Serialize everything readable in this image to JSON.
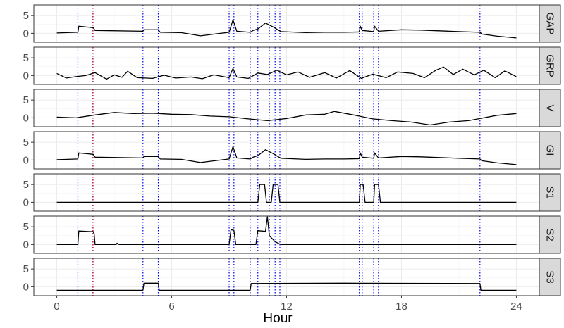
{
  "chart_data": {
    "type": "line",
    "xlabel": "Hour",
    "xlim": [
      -1.2,
      25.2
    ],
    "x_ticks": [
      0,
      6,
      12,
      18,
      24
    ],
    "x_tick_labels": [
      "0",
      "6",
      "12",
      "18",
      "24"
    ],
    "ylim": [
      -2.5,
      8
    ],
    "y_ticks": [
      0,
      5
    ],
    "y_tick_labels": [
      "0",
      "5"
    ],
    "event_lines": {
      "blue_hours": [
        1.1,
        1.85,
        4.5,
        5.3,
        9.0,
        9.25,
        10.1,
        10.5,
        11.1,
        11.4,
        11.65,
        15.8,
        15.95,
        16.55,
        16.8,
        22.1
      ],
      "red_hours": [
        1.9
      ],
      "blue_color": "#0000ee",
      "red_color": "#ff3333"
    },
    "line_color": "#000000",
    "panels": [
      {
        "name": "GAP",
        "points": [
          [
            0,
            0.1
          ],
          [
            1.1,
            0.3
          ],
          [
            1.15,
            2.0
          ],
          [
            1.9,
            1.6
          ],
          [
            2.0,
            0.8
          ],
          [
            4.5,
            0.6
          ],
          [
            4.55,
            1.0
          ],
          [
            5.3,
            1.0
          ],
          [
            5.4,
            0.3
          ],
          [
            6.5,
            0.2
          ],
          [
            7.5,
            -0.7
          ],
          [
            9.0,
            0.3
          ],
          [
            9.2,
            3.8
          ],
          [
            9.4,
            0.6
          ],
          [
            10.1,
            0.3
          ],
          [
            10.25,
            0.8
          ],
          [
            10.5,
            1.2
          ],
          [
            10.9,
            2.9
          ],
          [
            11.3,
            1.8
          ],
          [
            11.7,
            0.5
          ],
          [
            13,
            0.2
          ],
          [
            14,
            0.3
          ],
          [
            15.0,
            0.3
          ],
          [
            15.8,
            0.4
          ],
          [
            15.85,
            2.0
          ],
          [
            15.95,
            0.8
          ],
          [
            16.55,
            0.5
          ],
          [
            16.6,
            2.0
          ],
          [
            16.8,
            0.6
          ],
          [
            18,
            1.0
          ],
          [
            19,
            0.9
          ],
          [
            21,
            0.5
          ],
          [
            22.1,
            0.3
          ],
          [
            22.2,
            -0.2
          ],
          [
            23,
            -0.8
          ],
          [
            24,
            -1.3
          ]
        ]
      },
      {
        "name": "GRP",
        "points": [
          [
            0,
            0.6
          ],
          [
            0.5,
            -0.7
          ],
          [
            1.0,
            -0.3
          ],
          [
            1.5,
            0.0
          ],
          [
            2.0,
            0.8
          ],
          [
            2.6,
            -1.0
          ],
          [
            3.0,
            0.2
          ],
          [
            3.4,
            -0.5
          ],
          [
            3.7,
            1.2
          ],
          [
            4.2,
            -0.6
          ],
          [
            5.0,
            -0.8
          ],
          [
            5.6,
            0.1
          ],
          [
            6.2,
            -0.7
          ],
          [
            7.0,
            -0.4
          ],
          [
            7.6,
            -0.9
          ],
          [
            8.2,
            0.2
          ],
          [
            9.0,
            -0.6
          ],
          [
            9.2,
            2.0
          ],
          [
            9.4,
            -0.4
          ],
          [
            10.0,
            -0.8
          ],
          [
            10.5,
            0.7
          ],
          [
            11.0,
            0.3
          ],
          [
            11.5,
            1.5
          ],
          [
            12.0,
            0.2
          ],
          [
            12.6,
            1.0
          ],
          [
            13.2,
            -0.5
          ],
          [
            14.0,
            0.8
          ],
          [
            14.6,
            -0.7
          ],
          [
            15.3,
            1.4
          ],
          [
            15.9,
            -0.8
          ],
          [
            16.5,
            0.4
          ],
          [
            17.2,
            -0.6
          ],
          [
            17.8,
            1.0
          ],
          [
            18.6,
            0.6
          ],
          [
            19.2,
            -0.6
          ],
          [
            19.8,
            1.5
          ],
          [
            20.2,
            2.4
          ],
          [
            20.7,
            0.3
          ],
          [
            21.2,
            1.8
          ],
          [
            21.8,
            0.2
          ],
          [
            22.3,
            1.5
          ],
          [
            22.9,
            -0.6
          ],
          [
            23.4,
            1.3
          ],
          [
            24,
            -0.3
          ]
        ]
      },
      {
        "name": "V",
        "points": [
          [
            0,
            0.2
          ],
          [
            1.0,
            0.0
          ],
          [
            2.0,
            0.8
          ],
          [
            3.0,
            1.5
          ],
          [
            4.0,
            1.2
          ],
          [
            5.0,
            1.3
          ],
          [
            6.0,
            1.0
          ],
          [
            7.0,
            0.9
          ],
          [
            8.0,
            0.5
          ],
          [
            9.0,
            0.3
          ],
          [
            10.0,
            -0.3
          ],
          [
            11.0,
            -0.8
          ],
          [
            12.0,
            -0.2
          ],
          [
            13.0,
            0.8
          ],
          [
            14.0,
            1.0
          ],
          [
            14.5,
            1.8
          ],
          [
            15.5,
            0.8
          ],
          [
            16.5,
            -0.3
          ],
          [
            17.5,
            -0.8
          ],
          [
            18.5,
            -1.2
          ],
          [
            19.5,
            -2.0
          ],
          [
            20.5,
            -1.2
          ],
          [
            21.5,
            -0.8
          ],
          [
            22.0,
            -0.3
          ],
          [
            23.0,
            0.7
          ],
          [
            24,
            1.2
          ]
        ]
      },
      {
        "name": "GI",
        "points": [
          [
            0,
            0.1
          ],
          [
            1.1,
            0.3
          ],
          [
            1.15,
            2.0
          ],
          [
            1.9,
            1.6
          ],
          [
            2.0,
            0.8
          ],
          [
            4.5,
            0.6
          ],
          [
            4.55,
            1.0
          ],
          [
            5.3,
            1.0
          ],
          [
            5.4,
            0.3
          ],
          [
            6.5,
            0.2
          ],
          [
            7.5,
            -0.7
          ],
          [
            9.0,
            0.3
          ],
          [
            9.2,
            3.8
          ],
          [
            9.4,
            0.6
          ],
          [
            10.1,
            0.3
          ],
          [
            10.25,
            0.8
          ],
          [
            10.5,
            1.2
          ],
          [
            10.9,
            2.9
          ],
          [
            11.3,
            1.8
          ],
          [
            11.7,
            0.5
          ],
          [
            13,
            0.2
          ],
          [
            14,
            0.3
          ],
          [
            15.0,
            0.3
          ],
          [
            15.8,
            0.4
          ],
          [
            15.85,
            2.0
          ],
          [
            15.95,
            0.8
          ],
          [
            16.55,
            0.5
          ],
          [
            16.6,
            2.0
          ],
          [
            16.8,
            0.6
          ],
          [
            18,
            1.0
          ],
          [
            19,
            0.9
          ],
          [
            21,
            0.5
          ],
          [
            22.1,
            0.3
          ],
          [
            22.2,
            -0.2
          ],
          [
            23,
            -0.8
          ],
          [
            24,
            -1.3
          ]
        ]
      },
      {
        "name": "S1",
        "points": [
          [
            0,
            0
          ],
          [
            10.5,
            0
          ],
          [
            10.6,
            5
          ],
          [
            10.85,
            5
          ],
          [
            10.95,
            0
          ],
          [
            11.2,
            0
          ],
          [
            11.3,
            5
          ],
          [
            11.55,
            5
          ],
          [
            11.65,
            0
          ],
          [
            15.8,
            0
          ],
          [
            15.85,
            5
          ],
          [
            16.0,
            5
          ],
          [
            16.1,
            0
          ],
          [
            16.55,
            0
          ],
          [
            16.6,
            5
          ],
          [
            16.8,
            5
          ],
          [
            16.9,
            0
          ],
          [
            24,
            0
          ]
        ]
      },
      {
        "name": "S2",
        "points": [
          [
            0,
            0
          ],
          [
            1.1,
            0
          ],
          [
            1.15,
            3.8
          ],
          [
            1.9,
            3.6
          ],
          [
            1.95,
            3.0
          ],
          [
            2.0,
            0
          ],
          [
            3.1,
            0
          ],
          [
            3.15,
            0.4
          ],
          [
            3.25,
            0
          ],
          [
            9.0,
            0
          ],
          [
            9.1,
            4.2
          ],
          [
            9.25,
            4.0
          ],
          [
            9.35,
            0
          ],
          [
            10.4,
            0
          ],
          [
            10.5,
            3.9
          ],
          [
            10.9,
            3.7
          ],
          [
            11.0,
            7.8
          ],
          [
            11.1,
            2.5
          ],
          [
            11.4,
            0.8
          ],
          [
            11.7,
            0
          ],
          [
            24,
            0
          ]
        ]
      },
      {
        "name": "S3",
        "points": [
          [
            0,
            -1.0
          ],
          [
            4.5,
            -1.0
          ],
          [
            4.55,
            1.0
          ],
          [
            5.3,
            1.0
          ],
          [
            5.35,
            -1.0
          ],
          [
            10.1,
            -1.0
          ],
          [
            10.15,
            0.9
          ],
          [
            15.0,
            1.0
          ],
          [
            22.1,
            0.9
          ],
          [
            22.15,
            -1.0
          ],
          [
            24,
            -1.0
          ]
        ]
      }
    ]
  }
}
